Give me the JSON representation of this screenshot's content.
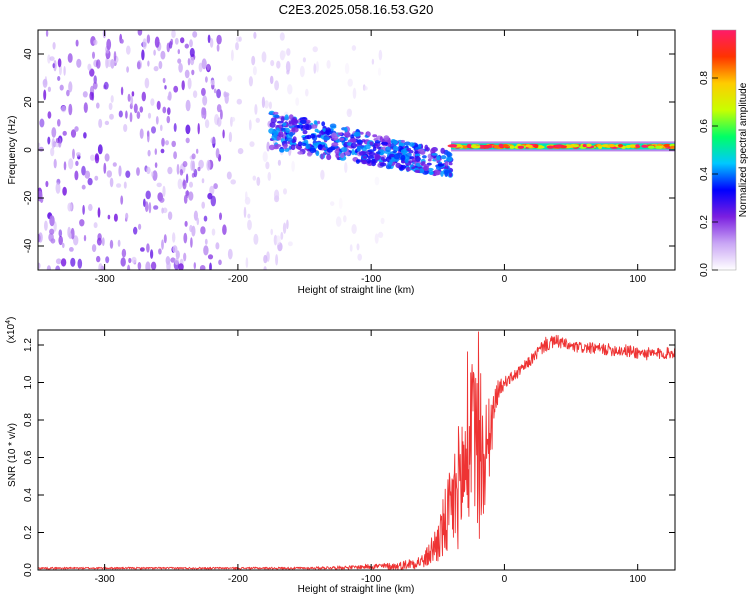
{
  "figure_title": "C2E3.2025.058.16.53.G20",
  "chart_data": [
    {
      "type": "heatmap",
      "title": "C2E3.2025.058.16.53.G20",
      "xlabel": "Height of straight line (km)",
      "ylabel": "Frequency (Hz)",
      "xlim": [
        -350,
        128
      ],
      "ylim": [
        -50,
        50
      ],
      "xticks": [
        -300,
        -200,
        -100,
        0,
        100
      ],
      "yticks": [
        -40,
        -20,
        0,
        20,
        40
      ],
      "colorbar": {
        "label": "Normalized spectral amplitude",
        "range": [
          0.0,
          1.0
        ],
        "ticks": [
          "0.0",
          "0.2",
          "0.4",
          "0.6",
          "0.8"
        ],
        "tick_values": [
          0.0,
          0.2,
          0.4,
          0.6,
          0.8
        ],
        "colormap": [
          "#ffffff",
          "#c9a6f5",
          "#7b1fe0",
          "#0000ff",
          "#00c8ff",
          "#00ff66",
          "#c8ff00",
          "#ffcc00",
          "#ff3300",
          "#ff1a6a"
        ]
      },
      "regions": [
        {
          "x_range": [
            -350,
            -210
          ],
          "freq_range": [
            -50,
            50
          ],
          "level": 0.15,
          "pattern": "dense purple speckle"
        },
        {
          "x_range": [
            -210,
            -160
          ],
          "freq_range": [
            -50,
            50
          ],
          "level": 0.06,
          "pattern": "light lavender speckle"
        },
        {
          "x_range": [
            -160,
            -90
          ],
          "freq_range": [
            -45,
            45
          ],
          "level": 0.03,
          "pattern": "sparse speckle"
        },
        {
          "x_range": [
            -175,
            -40
          ],
          "freq_range": [
            -15,
            15
          ],
          "level": 0.35,
          "pattern": "blue/cyan band drifting from +8 Hz to -15 Hz"
        },
        {
          "x_range": [
            -40,
            128
          ],
          "freq_range": [
            -1,
            4
          ],
          "level": 0.9,
          "pattern": "narrow red/yellow carrier line near 1.5 Hz"
        }
      ]
    },
    {
      "type": "line",
      "xlabel": "Height of straight line (km)",
      "ylabel": "SNR (10 * v/v)",
      "y_multiplier": "(x10",
      "y_multiplier_exp": "4",
      "y_multiplier_close": ")",
      "xlim": [
        -350,
        128
      ],
      "ylim": [
        0,
        1.28
      ],
      "xticks": [
        -300,
        -200,
        -100,
        0,
        100
      ],
      "yticks": [
        "0.0",
        "0.2",
        "0.4",
        "0.6",
        "0.8",
        "1.0",
        "1.2"
      ],
      "ytick_values": [
        0.0,
        0.2,
        0.4,
        0.6,
        0.8,
        1.0,
        1.2
      ],
      "color": "#ee3333",
      "envelope": {
        "x": [
          -350,
          -300,
          -200,
          -150,
          -110,
          -100,
          -80,
          -60,
          -50,
          -40,
          -30,
          -20,
          -15,
          -10,
          -5,
          0,
          10,
          20,
          30,
          40,
          50,
          70,
          90,
          110,
          128
        ],
        "y_mean": [
          0.01,
          0.01,
          0.01,
          0.01,
          0.015,
          0.02,
          0.02,
          0.05,
          0.15,
          0.32,
          0.55,
          0.6,
          0.55,
          0.75,
          0.95,
          1.0,
          1.05,
          1.12,
          1.2,
          1.22,
          1.19,
          1.18,
          1.17,
          1.15,
          1.16
        ],
        "noise": [
          0.005,
          0.005,
          0.005,
          0.006,
          0.01,
          0.015,
          0.02,
          0.04,
          0.12,
          0.25,
          0.4,
          0.5,
          0.3,
          0.2,
          0.06,
          0.03,
          0.03,
          0.03,
          0.04,
          0.035,
          0.03,
          0.03,
          0.035,
          0.035,
          0.03
        ]
      }
    }
  ]
}
